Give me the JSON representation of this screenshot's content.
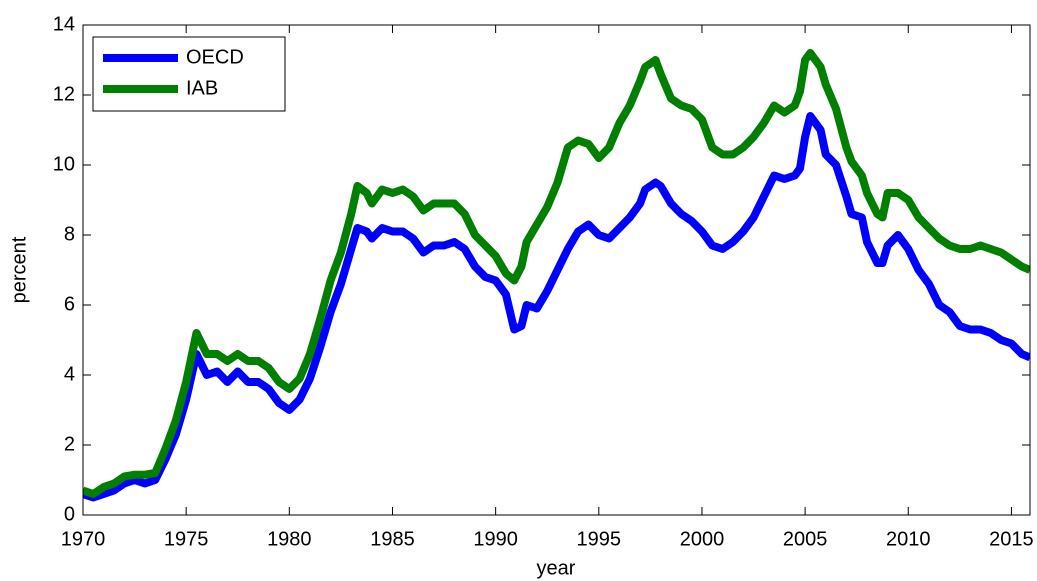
{
  "chart_data": {
    "type": "line",
    "xlabel": "year",
    "ylabel": "percent",
    "xlim": [
      1970,
      2015.9
    ],
    "ylim": [
      0,
      14
    ],
    "xticks": [
      1970,
      1975,
      1980,
      1985,
      1990,
      1995,
      2000,
      2005,
      2010,
      2015
    ],
    "yticks": [
      0,
      2,
      4,
      6,
      8,
      10,
      12,
      14
    ],
    "legend": "upper left",
    "x": [
      1970,
      1970.5,
      1971,
      1971.5,
      1972,
      1972.5,
      1973,
      1973.5,
      1974,
      1974.5,
      1975,
      1975.5,
      1976,
      1976.5,
      1977,
      1977.5,
      1978,
      1978.5,
      1979,
      1979.5,
      1980,
      1980.5,
      1981,
      1981.5,
      1982,
      1982.5,
      1983,
      1983.3,
      1983.75,
      1984,
      1984.5,
      1985,
      1985.5,
      1986,
      1986.5,
      1987,
      1987.5,
      1988,
      1988.5,
      1989,
      1989.5,
      1990,
      1990.5,
      1990.9,
      1991.25,
      1991.5,
      1992,
      1992.5,
      1993,
      1993.5,
      1994,
      1994.5,
      1995,
      1995.5,
      1996,
      1996.5,
      1997,
      1997.25,
      1997.75,
      1998,
      1998.5,
      1999,
      1999.5,
      2000,
      2000.5,
      2001,
      2001.5,
      2002,
      2002.5,
      2003,
      2003.5,
      2004,
      2004.5,
      2004.75,
      2005,
      2005.25,
      2005.75,
      2006,
      2006.5,
      2007,
      2007.25,
      2007.75,
      2008,
      2008.5,
      2008.75,
      2009,
      2009.5,
      2010,
      2010.5,
      2011,
      2011.5,
      2012,
      2012.5,
      2013,
      2013.5,
      2014,
      2014.5,
      2015,
      2015.5,
      2015.9
    ],
    "series": [
      {
        "name": "OECD",
        "color": "#0000ff",
        "values": [
          0.6,
          0.5,
          0.6,
          0.7,
          0.9,
          1.0,
          0.9,
          1.0,
          1.6,
          2.3,
          3.3,
          4.6,
          4.0,
          4.1,
          3.8,
          4.1,
          3.8,
          3.8,
          3.6,
          3.2,
          3.0,
          3.3,
          3.9,
          4.8,
          5.8,
          6.6,
          7.6,
          8.2,
          8.1,
          7.9,
          8.2,
          8.1,
          8.1,
          7.9,
          7.5,
          7.7,
          7.7,
          7.8,
          7.6,
          7.1,
          6.8,
          6.7,
          6.3,
          5.3,
          5.4,
          6.0,
          5.9,
          6.4,
          7.0,
          7.6,
          8.1,
          8.3,
          8.0,
          7.9,
          8.2,
          8.5,
          8.9,
          9.3,
          9.5,
          9.4,
          8.9,
          8.6,
          8.4,
          8.1,
          7.7,
          7.6,
          7.8,
          8.1,
          8.5,
          9.1,
          9.7,
          9.6,
          9.7,
          9.9,
          10.8,
          11.4,
          11.0,
          10.3,
          10.0,
          9.1,
          8.6,
          8.5,
          7.8,
          7.2,
          7.2,
          7.7,
          8.0,
          7.6,
          7.0,
          6.6,
          6.0,
          5.8,
          5.4,
          5.3,
          5.3,
          5.2,
          5.0,
          4.9,
          4.6,
          4.5
        ]
      },
      {
        "name": "IAB",
        "color": "#007f00",
        "values": [
          0.7,
          0.6,
          0.8,
          0.9,
          1.1,
          1.15,
          1.15,
          1.2,
          1.9,
          2.7,
          3.8,
          5.2,
          4.6,
          4.6,
          4.4,
          4.6,
          4.4,
          4.4,
          4.2,
          3.8,
          3.6,
          3.9,
          4.6,
          5.6,
          6.7,
          7.5,
          8.6,
          9.4,
          9.2,
          8.9,
          9.3,
          9.2,
          9.3,
          9.1,
          8.7,
          8.9,
          8.9,
          8.9,
          8.6,
          8.0,
          7.7,
          7.4,
          6.9,
          6.7,
          7.1,
          7.8,
          8.3,
          8.8,
          9.5,
          10.5,
          10.7,
          10.6,
          10.2,
          10.5,
          11.2,
          11.7,
          12.4,
          12.8,
          13.0,
          12.6,
          11.9,
          11.7,
          11.6,
          11.3,
          10.5,
          10.3,
          10.3,
          10.5,
          10.8,
          11.2,
          11.7,
          11.5,
          11.7,
          12.1,
          13.0,
          13.2,
          12.8,
          12.3,
          11.6,
          10.5,
          10.1,
          9.7,
          9.2,
          8.6,
          8.5,
          9.2,
          9.2,
          9.0,
          8.5,
          8.2,
          7.9,
          7.7,
          7.6,
          7.6,
          7.7,
          7.6,
          7.5,
          7.3,
          7.1,
          7.0
        ]
      }
    ]
  }
}
